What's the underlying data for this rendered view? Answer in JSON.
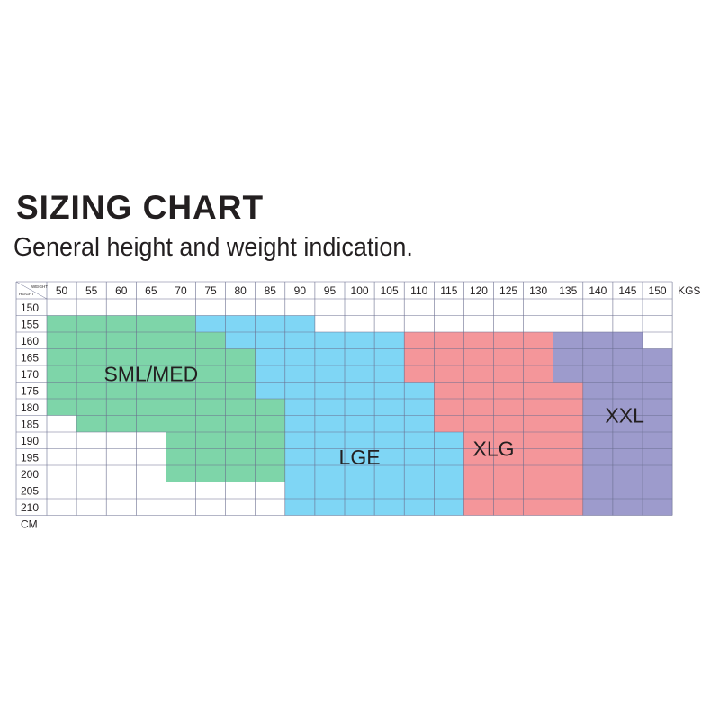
{
  "title": "SIZING CHART",
  "subtitle": "General height and weight indication.",
  "chart_data": {
    "type": "table",
    "corner": {
      "top_label": "WEIGHT",
      "bottom_label": "HEIGHT"
    },
    "x_unit": "KGS",
    "y_unit": "CM",
    "weights": [
      50,
      55,
      60,
      65,
      70,
      75,
      80,
      85,
      90,
      95,
      100,
      105,
      110,
      115,
      120,
      125,
      130,
      135,
      140,
      145,
      150
    ],
    "heights": [
      150,
      155,
      160,
      165,
      170,
      175,
      180,
      185,
      190,
      195,
      200,
      205,
      210
    ],
    "sizes": [
      {
        "name": "SML/MED",
        "color": "#7ed5a9",
        "label_weight_col": 3,
        "label_height_row": 4,
        "ranges": [
          {
            "height": 155,
            "weight_from": 50,
            "weight_to": 70
          },
          {
            "height": 160,
            "weight_from": 50,
            "weight_to": 75
          },
          {
            "height": 165,
            "weight_from": 50,
            "weight_to": 80
          },
          {
            "height": 170,
            "weight_from": 50,
            "weight_to": 80
          },
          {
            "height": 175,
            "weight_from": 50,
            "weight_to": 80
          },
          {
            "height": 180,
            "weight_from": 50,
            "weight_to": 85
          },
          {
            "height": 185,
            "weight_from": 55,
            "weight_to": 85
          },
          {
            "height": 190,
            "weight_from": 70,
            "weight_to": 85
          },
          {
            "height": 195,
            "weight_from": 70,
            "weight_to": 85
          },
          {
            "height": 200,
            "weight_from": 70,
            "weight_to": 85
          }
        ]
      },
      {
        "name": "LGE",
        "color": "#7fd6f5",
        "label_weight_col": 10,
        "label_height_row": 9,
        "ranges": [
          {
            "height": 155,
            "weight_from": 75,
            "weight_to": 90
          },
          {
            "height": 160,
            "weight_from": 80,
            "weight_to": 105
          },
          {
            "height": 165,
            "weight_from": 85,
            "weight_to": 105
          },
          {
            "height": 170,
            "weight_from": 85,
            "weight_to": 105
          },
          {
            "height": 175,
            "weight_from": 85,
            "weight_to": 110
          },
          {
            "height": 180,
            "weight_from": 90,
            "weight_to": 110
          },
          {
            "height": 185,
            "weight_from": 90,
            "weight_to": 110
          },
          {
            "height": 190,
            "weight_from": 90,
            "weight_to": 115
          },
          {
            "height": 195,
            "weight_from": 90,
            "weight_to": 115
          },
          {
            "height": 200,
            "weight_from": 90,
            "weight_to": 115
          },
          {
            "height": 205,
            "weight_from": 90,
            "weight_to": 115
          },
          {
            "height": 210,
            "weight_from": 90,
            "weight_to": 115
          }
        ]
      },
      {
        "name": "XLG",
        "color": "#f4969a",
        "label_weight_col": 14.5,
        "label_height_row": 8.5,
        "ranges": [
          {
            "height": 160,
            "weight_from": 110,
            "weight_to": 130
          },
          {
            "height": 165,
            "weight_from": 110,
            "weight_to": 130
          },
          {
            "height": 170,
            "weight_from": 110,
            "weight_to": 130
          },
          {
            "height": 175,
            "weight_from": 115,
            "weight_to": 135
          },
          {
            "height": 180,
            "weight_from": 115,
            "weight_to": 135
          },
          {
            "height": 185,
            "weight_from": 115,
            "weight_to": 135
          },
          {
            "height": 190,
            "weight_from": 120,
            "weight_to": 135
          },
          {
            "height": 195,
            "weight_from": 120,
            "weight_to": 135
          },
          {
            "height": 200,
            "weight_from": 120,
            "weight_to": 135
          },
          {
            "height": 205,
            "weight_from": 120,
            "weight_to": 135
          },
          {
            "height": 210,
            "weight_from": 120,
            "weight_to": 135
          }
        ]
      },
      {
        "name": "XXL",
        "color": "#9d9bcc",
        "label_weight_col": 18.9,
        "label_height_row": 6.5,
        "ranges": [
          {
            "height": 160,
            "weight_from": 135,
            "weight_to": 145
          },
          {
            "height": 165,
            "weight_from": 135,
            "weight_to": 150
          },
          {
            "height": 170,
            "weight_from": 135,
            "weight_to": 150
          },
          {
            "height": 175,
            "weight_from": 140,
            "weight_to": 150
          },
          {
            "height": 180,
            "weight_from": 140,
            "weight_to": 150
          },
          {
            "height": 185,
            "weight_from": 140,
            "weight_to": 150
          },
          {
            "height": 190,
            "weight_from": 140,
            "weight_to": 150
          },
          {
            "height": 195,
            "weight_from": 140,
            "weight_to": 150
          },
          {
            "height": 200,
            "weight_from": 140,
            "weight_to": 150
          },
          {
            "height": 205,
            "weight_from": 140,
            "weight_to": 150
          },
          {
            "height": 210,
            "weight_from": 140,
            "weight_to": 150
          }
        ]
      }
    ],
    "grid": true,
    "grid_color": "#6b6f8f"
  }
}
